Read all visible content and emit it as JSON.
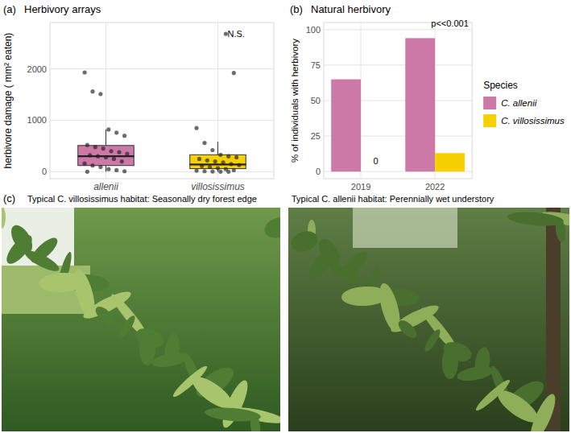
{
  "chart_data": [
    {
      "type": "box",
      "panel": "(a)",
      "title": "Herbivory arrays",
      "y_label": "herbivore damage ( mm² eaten)",
      "categories": [
        "allenii",
        "villosissimus"
      ],
      "colors": [
        "#CC79A7",
        "#F7D000"
      ],
      "boxes": [
        {
          "whisker_low": 0,
          "q1": 120,
          "median": 300,
          "q3": 510,
          "whisker_high": 820
        },
        {
          "whisker_low": 0,
          "q1": 60,
          "median": 140,
          "q3": 330,
          "whisker_high": 580
        }
      ],
      "points": [
        [
          1930,
          1560,
          1510,
          820,
          760,
          700,
          520,
          480,
          450,
          400,
          380,
          350,
          320,
          300,
          280,
          250,
          200,
          160,
          120,
          90,
          50,
          30,
          10,
          0
        ],
        [
          2680,
          1920,
          850,
          560,
          420,
          330,
          300,
          280,
          250,
          220,
          200,
          180,
          150,
          130,
          110,
          90,
          70,
          50,
          30,
          20,
          10,
          5,
          0,
          0
        ]
      ],
      "annotations": [
        {
          "text": "N.S.",
          "category": "villosissimus",
          "y": 2680
        }
      ],
      "ylim": [
        -135,
        2900
      ],
      "yticks": [
        0,
        1000,
        2000
      ],
      "grid": true
    },
    {
      "type": "bar",
      "panel": "(b)",
      "title": "Natural herbivory",
      "y_label": "% of individuals with herbivory",
      "categories": [
        "2019",
        "2022"
      ],
      "series": [
        {
          "name": "C. allenii",
          "color": "#CC79A7",
          "values": [
            65,
            94
          ]
        },
        {
          "name": "C. villosissimus",
          "color": "#F7D000",
          "values": [
            0,
            13
          ]
        }
      ],
      "legend": "right",
      "legend_title": "Species",
      "annotations": [
        {
          "text": "0",
          "category": "2019",
          "series": "C. villosissimus",
          "y": 3
        },
        {
          "text": "p<<0.001",
          "category": "2022",
          "series": "C. villosissimus",
          "y": 100
        }
      ],
      "ylim": [
        -5,
        105
      ],
      "yticks": [
        0,
        25,
        50,
        75,
        100
      ],
      "grid": true
    }
  ],
  "photos": {
    "panel": "(c)",
    "items": [
      {
        "caption": "Typical C. villosissimus habitat: Seasonally dry forest edge"
      },
      {
        "caption": "Typical C. allenii habitat: Perennially wet understory"
      }
    ]
  }
}
